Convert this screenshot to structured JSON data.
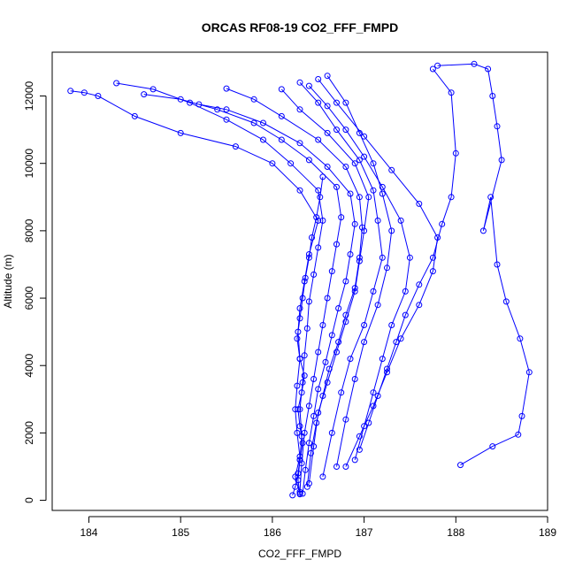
{
  "chart_data": {
    "type": "scatter",
    "title": "ORCAS RF08-19 CO2_FFF_FMPD",
    "xlabel": "CO2_FFF_FMPD",
    "ylabel": "Altitude (m)",
    "xlim": [
      183.6,
      189.0
    ],
    "ylim": [
      -300,
      13300
    ],
    "xticks": [
      184,
      185,
      186,
      187,
      188,
      189
    ],
    "yticks": [
      0,
      2000,
      4000,
      6000,
      8000,
      10000,
      12000
    ],
    "grid": false,
    "legend": "none",
    "marker": "open-circle",
    "connect_points": true,
    "colors": {
      "series": "#0000ff",
      "axes": "#000000",
      "background": "#ffffff"
    },
    "series": [
      {
        "x": [
          183.8,
          183.95,
          184.1,
          184.5,
          185.0,
          185.6,
          186.0,
          186.3,
          186.5,
          186.4,
          186.35,
          186.3,
          186.28,
          186.3,
          186.27,
          186.25,
          186.27,
          186.3,
          186.25,
          186.3
        ],
        "y": [
          12150,
          12100,
          12000,
          11400,
          10900,
          10500,
          10000,
          9200,
          8300,
          7300,
          6500,
          5700,
          5000,
          4200,
          3400,
          2700,
          2000,
          1300,
          700,
          200
        ]
      },
      {
        "x": [
          184.3,
          184.7,
          185.1,
          185.5,
          185.9,
          186.2,
          186.5,
          186.55,
          186.5,
          186.45,
          186.4,
          186.38,
          186.35,
          186.33,
          186.3,
          186.32,
          186.3,
          186.28,
          186.3
        ],
        "y": [
          12380,
          12200,
          11800,
          11300,
          10700,
          10000,
          9200,
          8300,
          7500,
          6700,
          5900,
          5100,
          4300,
          3500,
          2700,
          1900,
          1200,
          600,
          180
        ]
      },
      {
        "x": [
          184.6,
          185.0,
          185.4,
          185.8,
          186.1,
          186.4,
          186.7,
          186.75,
          186.7,
          186.65,
          186.6,
          186.55,
          186.5,
          186.45,
          186.4,
          186.35,
          186.32,
          186.3
        ],
        "y": [
          12050,
          11900,
          11600,
          11200,
          10700,
          10100,
          9300,
          8400,
          7600,
          6800,
          6000,
          5200,
          4400,
          3600,
          2800,
          2000,
          1100,
          250
        ]
      },
      {
        "x": [
          185.2,
          185.5,
          185.9,
          186.3,
          186.6,
          186.85,
          186.9,
          186.85,
          186.8,
          186.72,
          186.65,
          186.58,
          186.5,
          186.45,
          186.4,
          186.36,
          186.33
        ],
        "y": [
          11750,
          11600,
          11200,
          10600,
          9900,
          9100,
          8200,
          7300,
          6500,
          5700,
          4900,
          4100,
          3300,
          2500,
          1700,
          900,
          200
        ]
      },
      {
        "x": [
          185.5,
          185.8,
          186.1,
          186.5,
          186.8,
          186.95,
          186.98,
          186.95,
          186.9,
          186.8,
          186.72,
          186.62,
          186.55,
          186.48,
          186.42,
          186.38
        ],
        "y": [
          12220,
          11900,
          11400,
          10700,
          9900,
          9000,
          8100,
          7200,
          6300,
          5500,
          4700,
          3900,
          3100,
          2300,
          1400,
          400
        ]
      },
      {
        "x": [
          186.1,
          186.3,
          186.6,
          186.9,
          187.05,
          187.0,
          186.95,
          186.9,
          186.8,
          186.7,
          186.6,
          186.5,
          186.45,
          186.4
        ],
        "y": [
          12200,
          11600,
          10900,
          10000,
          9000,
          8000,
          7100,
          6200,
          5300,
          4400,
          3500,
          2600,
          1600,
          500
        ]
      },
      {
        "x": [
          186.3,
          186.5,
          186.7,
          186.95,
          187.1,
          187.15,
          187.2,
          187.1,
          187.0,
          186.85,
          186.75,
          186.65,
          186.55
        ],
        "y": [
          12400,
          11800,
          11000,
          10100,
          9200,
          8300,
          7200,
          6200,
          5200,
          4200,
          3200,
          2000,
          700
        ]
      },
      {
        "x": [
          186.6,
          186.8,
          186.95,
          187.1,
          187.2,
          187.3,
          187.25,
          187.15,
          187.0,
          186.9,
          186.8,
          186.7
        ],
        "y": [
          12600,
          11800,
          10900,
          10000,
          9100,
          8000,
          6900,
          5800,
          4700,
          3600,
          2400,
          1000
        ]
      },
      {
        "x": [
          186.4,
          186.6,
          186.8,
          187.0,
          187.2,
          187.4,
          187.5,
          187.45,
          187.3,
          187.2,
          187.1,
          187.0,
          186.9
        ],
        "y": [
          12300,
          11700,
          11000,
          10200,
          9300,
          8300,
          7200,
          6200,
          5200,
          4200,
          3200,
          2200,
          1200
        ]
      },
      {
        "x": [
          186.5,
          186.7,
          187.0,
          187.3,
          187.6,
          187.8,
          187.75,
          187.6,
          187.4,
          187.25,
          187.1,
          186.95,
          186.8
        ],
        "y": [
          12500,
          11800,
          10800,
          9800,
          8800,
          7800,
          6800,
          5800,
          4800,
          3800,
          2800,
          1900,
          1000
        ]
      },
      {
        "x": [
          187.75,
          187.95,
          188.0,
          187.95,
          187.85,
          187.75,
          187.6,
          187.45,
          187.35,
          187.25,
          187.15,
          187.05,
          186.95
        ],
        "y": [
          12800,
          12100,
          10300,
          9000,
          8200,
          7200,
          6400,
          5500,
          4700,
          3900,
          3100,
          2300,
          1500
        ]
      },
      {
        "x": [
          187.8,
          188.2,
          188.35,
          188.4,
          188.45,
          188.5,
          188.3,
          188.38,
          188.45,
          188.55,
          188.7,
          188.8,
          188.72,
          188.68,
          188.4,
          188.05
        ],
        "y": [
          12900,
          12950,
          12800,
          12000,
          11100,
          10100,
          8000,
          9000,
          7000,
          5900,
          4800,
          3800,
          2500,
          1950,
          1600,
          1050
        ]
      },
      {
        "x": [
          186.22,
          186.25,
          186.28,
          186.3,
          186.33,
          186.3,
          186.28,
          186.32,
          186.35,
          186.3,
          186.27,
          186.3,
          186.33,
          186.36,
          186.4,
          186.43,
          186.48,
          186.52,
          186.55
        ],
        "y": [
          150,
          400,
          800,
          1200,
          1700,
          2200,
          2700,
          3200,
          3700,
          4200,
          4800,
          5400,
          6000,
          6600,
          7200,
          7800,
          8400,
          9000,
          9600
        ]
      }
    ]
  }
}
